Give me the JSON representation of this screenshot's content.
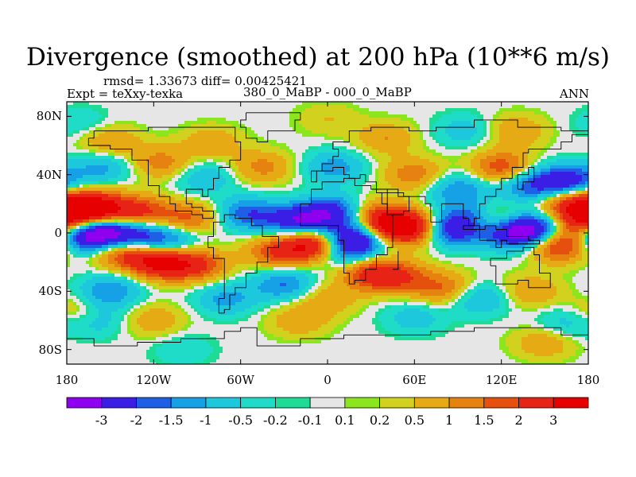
{
  "chart_data": {
    "type": "heatmap",
    "title": "Divergence (smoothed) at 200 hPa (10**6 m/s)",
    "stats": "rmsd= 1.33673 diff= 0.00425421",
    "experiment": "Expt = teXxy-texka",
    "subtitle": "380_0_MaBP - 000_0_MaBP",
    "period": "ANN",
    "xlim": [
      -180,
      180
    ],
    "ylim": [
      -90,
      90
    ],
    "x_ticks": [
      {
        "value": -180,
        "label": "180"
      },
      {
        "value": -120,
        "label": "120W"
      },
      {
        "value": -60,
        "label": "60W"
      },
      {
        "value": 0,
        "label": "0"
      },
      {
        "value": 60,
        "label": "60E"
      },
      {
        "value": 120,
        "label": "120E"
      },
      {
        "value": 180,
        "label": "180"
      }
    ],
    "y_ticks": [
      {
        "value": 80,
        "label": "80N"
      },
      {
        "value": 40,
        "label": "40N"
      },
      {
        "value": 0,
        "label": "0"
      },
      {
        "value": -40,
        "label": "40S"
      },
      {
        "value": -80,
        "label": "80S"
      }
    ],
    "colorbar": {
      "labels": [
        "-3",
        "-2",
        "-1.5",
        "-1",
        "-0.5",
        "-0.2",
        "-0.1",
        "0.1",
        "0.2",
        "0.5",
        "1",
        "1.5",
        "2",
        "3"
      ],
      "colors": [
        "#8f00f0",
        "#3b1ee6",
        "#1e5fe6",
        "#16a0e6",
        "#1ec8dc",
        "#1edcc8",
        "#1edc96",
        "#e6e6e6",
        "#8ce61e",
        "#d2d21e",
        "#e6aa14",
        "#e6820f",
        "#e6500f",
        "#e62314",
        "#e60000"
      ]
    },
    "features": [
      {
        "lon": -160,
        "lat": 17,
        "value": 3.2
      },
      {
        "lon": -175,
        "lat": 15,
        "value": 2.5
      },
      {
        "lon": -130,
        "lat": 14,
        "value": 2.2
      },
      {
        "lon": -95,
        "lat": 10,
        "value": 1.6
      },
      {
        "lon": -160,
        "lat": 0,
        "value": -3.5
      },
      {
        "lon": -135,
        "lat": -2,
        "value": -2.5
      },
      {
        "lon": -110,
        "lat": -6,
        "value": -1.8
      },
      {
        "lon": -175,
        "lat": -3,
        "value": -1.5
      },
      {
        "lon": -115,
        "lat": -20,
        "value": 3.2
      },
      {
        "lon": -140,
        "lat": -13,
        "value": 2.3
      },
      {
        "lon": -90,
        "lat": -22,
        "value": 2.0
      },
      {
        "lon": -150,
        "lat": -40,
        "value": -1.5
      },
      {
        "lon": -55,
        "lat": 13,
        "value": -1.9
      },
      {
        "lon": -20,
        "lat": 8,
        "value": -2.8
      },
      {
        "lon": 5,
        "lat": 14,
        "value": -2.5
      },
      {
        "lon": -10,
        "lat": -8,
        "value": 3.3
      },
      {
        "lon": -35,
        "lat": -13,
        "value": 1.8
      },
      {
        "lon": 20,
        "lat": -3,
        "value": -2.8
      },
      {
        "lon": 12,
        "lat": -12,
        "value": -1.8
      },
      {
        "lon": 45,
        "lat": 5,
        "value": 3.0
      },
      {
        "lon": 60,
        "lat": 3,
        "value": 2.3
      },
      {
        "lon": 30,
        "lat": 12,
        "value": 1.5
      },
      {
        "lon": 30,
        "lat": -28,
        "value": 2.1
      },
      {
        "lon": 50,
        "lat": -30,
        "value": 1.6
      },
      {
        "lon": 85,
        "lat": 2,
        "value": -2.6
      },
      {
        "lon": 100,
        "lat": 10,
        "value": -1.8
      },
      {
        "lon": 125,
        "lat": 1,
        "value": -3.2
      },
      {
        "lon": 115,
        "lat": 7,
        "value": 2.5
      },
      {
        "lon": 145,
        "lat": 2,
        "value": -2.8
      },
      {
        "lon": 160,
        "lat": -8,
        "value": 2.7
      },
      {
        "lon": 175,
        "lat": 5,
        "value": 2.3
      },
      {
        "lon": 165,
        "lat": 35,
        "value": -2.8
      },
      {
        "lon": 140,
        "lat": 32,
        "value": -1.8
      },
      {
        "lon": 120,
        "lat": 45,
        "value": 1.9
      },
      {
        "lon": 165,
        "lat": 22,
        "value": 2.0
      },
      {
        "lon": -155,
        "lat": 45,
        "value": -1.2
      },
      {
        "lon": -115,
        "lat": 48,
        "value": 1.3
      },
      {
        "lon": -150,
        "lat": 62,
        "value": 1.1
      },
      {
        "lon": -85,
        "lat": 38,
        "value": -1.0
      },
      {
        "lon": -45,
        "lat": 45,
        "value": 1.2
      },
      {
        "lon": 5,
        "lat": 45,
        "value": -1.3
      },
      {
        "lon": 60,
        "lat": 40,
        "value": 1.4
      },
      {
        "lon": 90,
        "lat": 30,
        "value": -1.5
      },
      {
        "lon": 40,
        "lat": 65,
        "value": 1.0
      },
      {
        "lon": 95,
        "lat": 70,
        "value": -0.8
      },
      {
        "lon": 130,
        "lat": 70,
        "value": 1.0
      },
      {
        "lon": -30,
        "lat": -35,
        "value": -1.6
      },
      {
        "lon": 0,
        "lat": -45,
        "value": 0.9
      },
      {
        "lon": 80,
        "lat": -38,
        "value": 1.5
      },
      {
        "lon": 105,
        "lat": -45,
        "value": -1.2
      },
      {
        "lon": 140,
        "lat": -40,
        "value": 1.0
      },
      {
        "lon": -70,
        "lat": -45,
        "value": -1.2
      },
      {
        "lon": -175,
        "lat": -55,
        "value": 0.9
      },
      {
        "lon": -160,
        "lat": -60,
        "value": -0.9
      },
      {
        "lon": -120,
        "lat": -60,
        "value": 0.9
      },
      {
        "lon": -20,
        "lat": -60,
        "value": 0.9
      },
      {
        "lon": 60,
        "lat": -58,
        "value": -0.8
      },
      {
        "lon": 165,
        "lat": -62,
        "value": -0.9
      },
      {
        "lon": -80,
        "lat": 62,
        "value": 0.9
      },
      {
        "lon": -170,
        "lat": 75,
        "value": -0.5
      },
      {
        "lon": 0,
        "lat": 78,
        "value": 0.5
      },
      {
        "lon": 150,
        "lat": -75,
        "value": 1.0
      },
      {
        "lon": -100,
        "lat": -80,
        "value": -0.5
      }
    ],
    "outlines": [
      {
        "name": "north-america",
        "points": [
          [
            -165,
            65
          ],
          [
            -160,
            70
          ],
          [
            -140,
            70
          ],
          [
            -125,
            72
          ],
          [
            -95,
            72
          ],
          [
            -80,
            72
          ],
          [
            -65,
            62
          ],
          [
            -60,
            50
          ],
          [
            -68,
            45
          ],
          [
            -75,
            38
          ],
          [
            -80,
            30
          ],
          [
            -82,
            25
          ],
          [
            -88,
            30
          ],
          [
            -97,
            27
          ],
          [
            -97,
            20
          ],
          [
            -92,
            18
          ],
          [
            -87,
            15
          ],
          [
            -80,
            9
          ],
          [
            -85,
            12
          ],
          [
            -92,
            15
          ],
          [
            -105,
            20
          ],
          [
            -110,
            25
          ],
          [
            -117,
            32
          ],
          [
            -123,
            40
          ],
          [
            -125,
            50
          ],
          [
            -135,
            58
          ],
          [
            -150,
            60
          ],
          [
            -165,
            62
          ],
          [
            -165,
            65
          ]
        ]
      },
      {
        "name": "greenland",
        "points": [
          [
            -55,
            82
          ],
          [
            -30,
            83
          ],
          [
            -20,
            78
          ],
          [
            -22,
            70
          ],
          [
            -40,
            62
          ],
          [
            -50,
            65
          ],
          [
            -55,
            72
          ],
          [
            -60,
            78
          ],
          [
            -55,
            82
          ]
        ]
      },
      {
        "name": "south-america",
        "points": [
          [
            -78,
            8
          ],
          [
            -72,
            12
          ],
          [
            -62,
            10
          ],
          [
            -52,
            5
          ],
          [
            -45,
            -2
          ],
          [
            -35,
            -5
          ],
          [
            -35,
            -10
          ],
          [
            -40,
            -20
          ],
          [
            -48,
            -28
          ],
          [
            -58,
            -38
          ],
          [
            -65,
            -42
          ],
          [
            -68,
            -52
          ],
          [
            -72,
            -54
          ],
          [
            -75,
            -45
          ],
          [
            -72,
            -30
          ],
          [
            -71,
            -18
          ],
          [
            -78,
            -10
          ],
          [
            -81,
            -3
          ],
          [
            -78,
            8
          ]
        ]
      },
      {
        "name": "africa-eurasia",
        "points": [
          [
            -17,
            15
          ],
          [
            -17,
            21
          ],
          [
            -10,
            30
          ],
          [
            -5,
            36
          ],
          [
            10,
            37
          ],
          [
            20,
            33
          ],
          [
            30,
            31
          ],
          [
            35,
            28
          ],
          [
            43,
            13
          ],
          [
            51,
            12
          ],
          [
            44,
            -10
          ],
          [
            40,
            -15
          ],
          [
            35,
            -25
          ],
          [
            28,
            -33
          ],
          [
            20,
            -35
          ],
          [
            15,
            -28
          ],
          [
            12,
            -18
          ],
          [
            12,
            -5
          ],
          [
            9,
            4
          ],
          [
            0,
            6
          ],
          [
            -8,
            5
          ],
          [
            -17,
            15
          ]
        ]
      },
      {
        "name": "eurasia",
        "points": [
          [
            -10,
            36
          ],
          [
            -9,
            43
          ],
          [
            -2,
            48
          ],
          [
            5,
            52
          ],
          [
            8,
            57
          ],
          [
            5,
            62
          ],
          [
            15,
            70
          ],
          [
            30,
            72
          ],
          [
            55,
            70
          ],
          [
            75,
            73
          ],
          [
            100,
            77
          ],
          [
            130,
            72
          ],
          [
            160,
            70
          ],
          [
            180,
            68
          ],
          [
            170,
            62
          ],
          [
            160,
            58
          ],
          [
            140,
            55
          ],
          [
            135,
            45
          ],
          [
            128,
            38
          ],
          [
            121,
            31
          ],
          [
            118,
            25
          ],
          [
            108,
            20
          ],
          [
            105,
            10
          ],
          [
            100,
            5
          ],
          [
            98,
            10
          ],
          [
            92,
            20
          ],
          [
            80,
            15
          ],
          [
            77,
            8
          ],
          [
            72,
            20
          ],
          [
            66,
            25
          ],
          [
            57,
            25
          ],
          [
            52,
            28
          ],
          [
            48,
            30
          ],
          [
            35,
            35
          ],
          [
            28,
            40
          ],
          [
            22,
            38
          ],
          [
            15,
            40
          ],
          [
            10,
            44
          ],
          [
            3,
            42
          ],
          [
            -10,
            36
          ]
        ]
      },
      {
        "name": "arabia",
        "points": [
          [
            35,
            28
          ],
          [
            37,
            20
          ],
          [
            43,
            13
          ],
          [
            52,
            16
          ],
          [
            58,
            22
          ],
          [
            56,
            26
          ],
          [
            50,
            28
          ],
          [
            40,
            30
          ],
          [
            35,
            28
          ]
        ]
      },
      {
        "name": "australia",
        "points": [
          [
            113,
            -22
          ],
          [
            115,
            -34
          ],
          [
            130,
            -32
          ],
          [
            140,
            -38
          ],
          [
            150,
            -37
          ],
          [
            153,
            -28
          ],
          [
            145,
            -15
          ],
          [
            142,
            -11
          ],
          [
            136,
            -12
          ],
          [
            130,
            -12
          ],
          [
            122,
            -17
          ],
          [
            113,
            -22
          ]
        ]
      },
      {
        "name": "indonesia",
        "points": [
          [
            95,
            5
          ],
          [
            105,
            -6
          ],
          [
            118,
            -9
          ],
          [
            120,
            -4
          ],
          [
            125,
            -8
          ],
          [
            140,
            -8
          ],
          [
            147,
            -6
          ],
          [
            140,
            -3
          ],
          [
            130,
            -2
          ],
          [
            125,
            2
          ],
          [
            118,
            5
          ],
          [
            110,
            2
          ],
          [
            100,
            3
          ],
          [
            95,
            5
          ]
        ]
      },
      {
        "name": "japan",
        "points": [
          [
            130,
            31
          ],
          [
            135,
            34
          ],
          [
            140,
            36
          ],
          [
            142,
            41
          ],
          [
            141,
            45
          ],
          [
            138,
            40
          ],
          [
            133,
            34
          ],
          [
            130,
            31
          ]
        ]
      },
      {
        "name": "madagascar",
        "points": [
          [
            44,
            -25
          ],
          [
            49,
            -15
          ],
          [
            50,
            -13
          ],
          [
            47,
            -24
          ],
          [
            44,
            -25
          ]
        ]
      },
      {
        "name": "antarctica",
        "points": [
          [
            -180,
            -72
          ],
          [
            -160,
            -78
          ],
          [
            -130,
            -74
          ],
          [
            -100,
            -72
          ],
          [
            -70,
            -68
          ],
          [
            -60,
            -64
          ],
          [
            -50,
            -77
          ],
          [
            -20,
            -73
          ],
          [
            10,
            -70
          ],
          [
            40,
            -69
          ],
          [
            70,
            -67
          ],
          [
            100,
            -66
          ],
          [
            130,
            -66
          ],
          [
            160,
            -70
          ],
          [
            180,
            -72
          ]
        ]
      }
    ]
  }
}
